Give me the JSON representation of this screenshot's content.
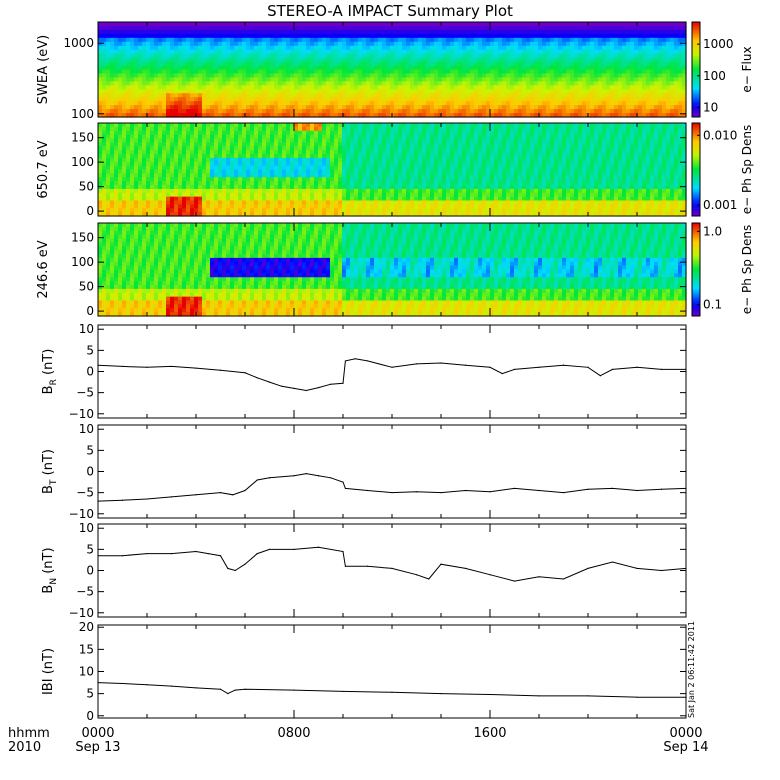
{
  "title": "STEREO-A IMPACT Summary Plot",
  "timestamp": "Sat Jan  2 06:11:42 2011",
  "colors": {
    "axis": "#000000",
    "trace": "#000000",
    "background": "#ffffff"
  },
  "time_axis": {
    "label_line1": "hhmm",
    "label_line2": "2010",
    "ticks": [
      {
        "hours": 0,
        "label": "0000",
        "date": "Sep 13"
      },
      {
        "hours": 8,
        "label": "0800",
        "date": ""
      },
      {
        "hours": 16,
        "label": "1600",
        "date": ""
      },
      {
        "hours": 24,
        "label": "0000",
        "date": "Sep 14"
      }
    ],
    "range_hours": [
      0,
      24
    ]
  },
  "chart_data": [
    {
      "type": "heatmap",
      "ylabel": "SWEA (eV)",
      "yscale": "log",
      "ylim": [
        90,
        2000
      ],
      "yticks": [
        {
          "v": 100,
          "label": "100"
        },
        {
          "v": 1000,
          "label": "1000"
        }
      ],
      "colorbar": {
        "label": "e− Flux",
        "scale": "log",
        "range": [
          5,
          5000
        ],
        "ticks": [
          {
            "v": 10,
            "label": "10"
          },
          {
            "v": 100,
            "label": "100"
          },
          {
            "v": 1000,
            "label": "1000"
          }
        ]
      }
    },
    {
      "type": "heatmap",
      "ylabel": "650.7 eV",
      "ylim": [
        -10,
        180
      ],
      "yticks": [
        {
          "v": 0,
          "label": "0"
        },
        {
          "v": 50,
          "label": "50"
        },
        {
          "v": 100,
          "label": "100"
        },
        {
          "v": 150,
          "label": "150"
        }
      ],
      "colorbar": {
        "label": "e− Ph Sp Dens",
        "scale": "log",
        "range": [
          0.0007,
          0.015
        ],
        "ticks": [
          {
            "v": 0.001,
            "label": "0.001"
          },
          {
            "v": 0.01,
            "label": "0.010"
          }
        ]
      }
    },
    {
      "type": "heatmap",
      "ylabel": "246.6 eV",
      "ylim": [
        -10,
        180
      ],
      "yticks": [
        {
          "v": 0,
          "label": "0"
        },
        {
          "v": 50,
          "label": "50"
        },
        {
          "v": 100,
          "label": "100"
        },
        {
          "v": 150,
          "label": "150"
        }
      ],
      "colorbar": {
        "label": "e− Ph Sp Dens",
        "scale": "log",
        "range": [
          0.07,
          1.3
        ],
        "ticks": [
          {
            "v": 0.1,
            "label": "0.1"
          },
          {
            "v": 1.0,
            "label": "1.0"
          }
        ]
      }
    },
    {
      "type": "line",
      "ylabel_main": "B",
      "ylabel_sub": "R",
      "ylabel_unit": "(nT)",
      "ylim": [
        -11,
        11
      ],
      "yticks": [
        {
          "v": -10,
          "label": "−10"
        },
        {
          "v": -5,
          "label": "−5"
        },
        {
          "v": 0,
          "label": "0"
        },
        {
          "v": 5,
          "label": "5"
        },
        {
          "v": 10,
          "label": "10"
        }
      ],
      "x": [
        0,
        1,
        2,
        3,
        4,
        5,
        6,
        6.5,
        7,
        7.5,
        8,
        8.5,
        9,
        9.5,
        10,
        10.1,
        10.5,
        11,
        12,
        13,
        14,
        15,
        16,
        16.5,
        17,
        18,
        19,
        20,
        20.5,
        21,
        22,
        23,
        24
      ],
      "y": [
        1.5,
        1.2,
        1.0,
        1.2,
        0.8,
        0.3,
        -0.3,
        -1.5,
        -2.5,
        -3.5,
        -4.0,
        -4.5,
        -3.8,
        -3.0,
        -2.8,
        2.5,
        3.0,
        2.5,
        1.0,
        1.8,
        2.0,
        1.5,
        1.0,
        -0.5,
        0.5,
        1.0,
        1.5,
        1.0,
        -1.0,
        0.5,
        1.0,
        0.5,
        0.5
      ]
    },
    {
      "type": "line",
      "ylabel_main": "B",
      "ylabel_sub": "T",
      "ylabel_unit": "(nT)",
      "ylim": [
        -11,
        11
      ],
      "yticks": [
        {
          "v": -10,
          "label": "−10"
        },
        {
          "v": -5,
          "label": "−5"
        },
        {
          "v": 0,
          "label": "0"
        },
        {
          "v": 5,
          "label": "5"
        },
        {
          "v": 10,
          "label": "10"
        }
      ],
      "x": [
        0,
        1,
        2,
        3,
        4,
        5,
        5.5,
        6,
        6.5,
        7,
        8,
        8.5,
        9,
        9.5,
        10,
        10.1,
        11,
        12,
        13,
        14,
        15,
        16,
        17,
        18,
        19,
        20,
        21,
        22,
        23,
        24
      ],
      "y": [
        -7.0,
        -6.8,
        -6.5,
        -6.0,
        -5.5,
        -5.0,
        -5.5,
        -4.5,
        -2.0,
        -1.5,
        -1.0,
        -0.5,
        -1.0,
        -1.5,
        -2.5,
        -4.0,
        -4.5,
        -5.0,
        -4.8,
        -5.0,
        -4.5,
        -4.8,
        -4.0,
        -4.5,
        -5.0,
        -4.2,
        -4.0,
        -4.5,
        -4.2,
        -4.0
      ]
    },
    {
      "type": "line",
      "ylabel_main": "B",
      "ylabel_sub": "N",
      "ylabel_unit": "(nT)",
      "ylim": [
        -11,
        11
      ],
      "yticks": [
        {
          "v": -10,
          "label": "−10"
        },
        {
          "v": -5,
          "label": "−5"
        },
        {
          "v": 0,
          "label": "0"
        },
        {
          "v": 5,
          "label": "5"
        },
        {
          "v": 10,
          "label": "10"
        }
      ],
      "x": [
        0,
        1,
        2,
        3,
        4,
        4.5,
        5,
        5.3,
        5.6,
        6,
        6.5,
        7,
        8,
        9,
        10,
        10.1,
        11,
        12,
        13,
        13.5,
        14,
        15,
        16,
        17,
        18,
        19,
        20,
        21,
        22,
        23,
        24
      ],
      "y": [
        3.5,
        3.5,
        4.0,
        4.0,
        4.5,
        4.0,
        3.5,
        0.5,
        0.0,
        1.5,
        4.0,
        5.0,
        5.0,
        5.5,
        4.5,
        1.0,
        1.0,
        0.5,
        -1.0,
        -2.0,
        1.5,
        0.5,
        -1.0,
        -2.5,
        -1.5,
        -2.0,
        0.5,
        2.0,
        0.5,
        0.0,
        0.5
      ]
    },
    {
      "type": "line",
      "ylabel_main": "IBI",
      "ylabel_sub": "",
      "ylabel_unit": "(nT)",
      "ylim": [
        -0.5,
        20.5
      ],
      "yticks": [
        {
          "v": 0,
          "label": "0"
        },
        {
          "v": 5,
          "label": "5"
        },
        {
          "v": 10,
          "label": "10"
        },
        {
          "v": 15,
          "label": "15"
        },
        {
          "v": 20,
          "label": "20"
        }
      ],
      "x": [
        0,
        1,
        2,
        3,
        4,
        5,
        5.3,
        5.6,
        6,
        8,
        10,
        12,
        14,
        16,
        18,
        20,
        22,
        24
      ],
      "y": [
        7.5,
        7.3,
        7.0,
        6.7,
        6.3,
        6.0,
        5.0,
        5.8,
        6.0,
        5.8,
        5.5,
        5.3,
        5.0,
        4.8,
        4.5,
        4.5,
        4.2,
        4.2
      ]
    }
  ]
}
